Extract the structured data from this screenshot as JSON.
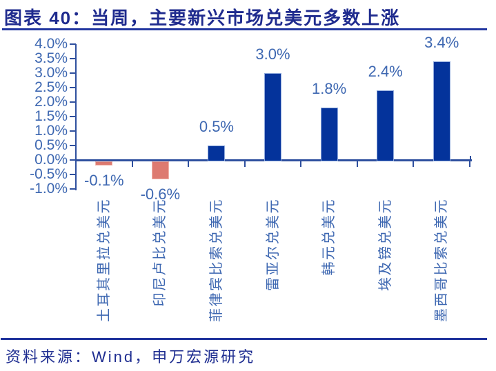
{
  "header": {
    "figure_label": "图表 40：",
    "title": "图表 40：当周，主要新兴市场兑美元多数上涨"
  },
  "chart_data": {
    "type": "bar",
    "title": "当周，主要新兴市场兑美元多数上涨",
    "categories": [
      "土耳其里拉兑美元",
      "印尼卢比兑美元",
      "菲律宾比索兑美元",
      "雷亚尔兑美元",
      "韩元兑美元",
      "埃及镑兑美元",
      "墨西哥比索兑美元"
    ],
    "values": [
      -0.1,
      -0.6,
      0.5,
      3.0,
      1.8,
      2.4,
      3.4
    ],
    "data_labels": [
      "-0.1%",
      "-0.6%",
      "0.5%",
      "3.0%",
      "1.8%",
      "2.4%",
      "3.4%"
    ],
    "unit": "%",
    "xlabel": "",
    "ylabel": "",
    "y_axis": {
      "ticks": [
        "4.0%",
        "3.5%",
        "3.0%",
        "2.5%",
        "2.0%",
        "1.5%",
        "1.0%",
        "0.5%",
        "0.0%",
        "-0.5%",
        "-1.0%"
      ],
      "max": 4.0,
      "min": -1.0,
      "step": 0.5
    },
    "ylim": [
      -1.0,
      4.0
    ],
    "grid": false,
    "legend": false,
    "colors": {
      "positive_bar": "#04339b",
      "negative_bar": "#dd7a70",
      "label_text": "#3d67b1",
      "axis_line": "#2e4f9e",
      "title_text": "#1f2b8e"
    }
  },
  "footer": {
    "source": "资料来源：Wind，申万宏源研究"
  }
}
